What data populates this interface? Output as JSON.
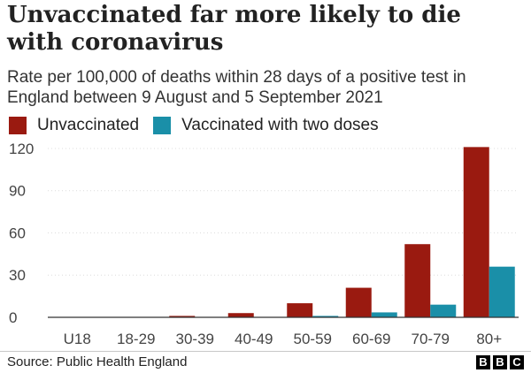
{
  "chart_data": {
    "type": "bar",
    "title": "Unvaccinated far more likely to die with coronavirus",
    "subtitle": "Rate per 100,000 of deaths within 28 days of a positive test in England between 9 August and 5 September 2021",
    "categories": [
      "U18",
      "18-29",
      "30-39",
      "40-49",
      "50-59",
      "60-69",
      "70-79",
      "80+"
    ],
    "series": [
      {
        "name": "Unvaccinated",
        "color": "#9a1a10",
        "values": [
          0.1,
          0.3,
          1,
          3,
          10,
          21,
          52,
          121
        ]
      },
      {
        "name": "Vaccinated with two doses",
        "color": "#1a8fa8",
        "values": [
          0,
          0,
          0.1,
          0.3,
          1,
          3.5,
          9,
          36
        ]
      }
    ],
    "yticks": [
      0,
      30,
      60,
      90,
      120
    ],
    "ylim": [
      0,
      125
    ],
    "grid": true,
    "legend_position": "top-left"
  },
  "footer": {
    "source": "Source: Public Health England",
    "logo_letters": [
      "B",
      "B",
      "C"
    ]
  }
}
